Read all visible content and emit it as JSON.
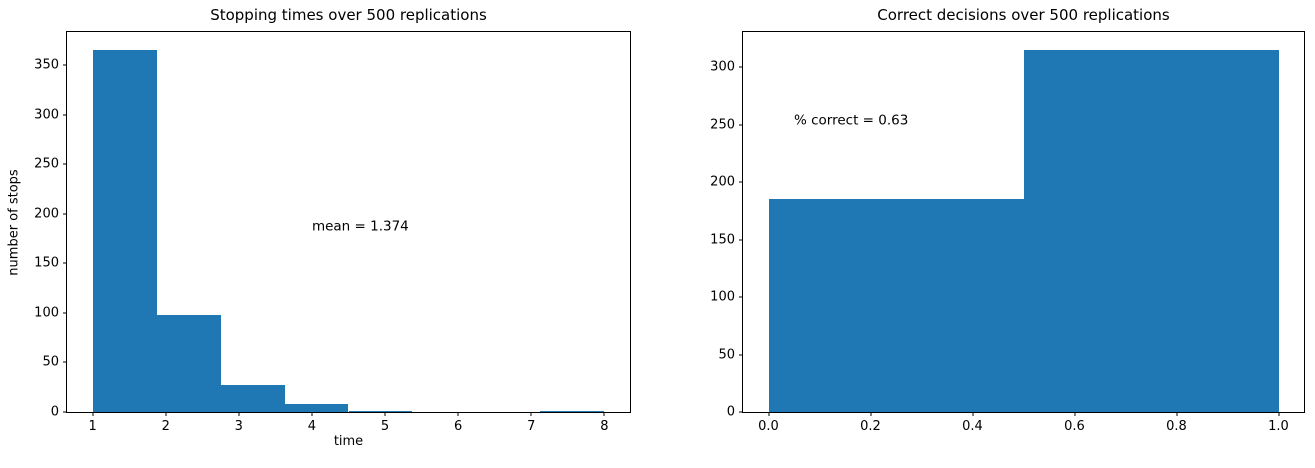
{
  "figure": {
    "background": "#ffffff",
    "bar_color": "#1f77b4",
    "spine_color": "#000000",
    "text_color": "#000000"
  },
  "chart_data": [
    {
      "type": "bar",
      "subtype": "histogram",
      "title": "Stopping times over 500 replications",
      "xlabel": "time",
      "ylabel": "number of stops",
      "bin_edges": [
        1,
        1.875,
        2.75,
        3.625,
        4.5,
        5.375,
        6.25,
        7.125,
        8
      ],
      "counts": [
        365,
        98,
        27,
        8,
        1,
        0,
        0,
        1
      ],
      "xlim": [
        0.65,
        8.35
      ],
      "ylim": [
        0,
        383.25
      ],
      "xticks": [
        1,
        2,
        3,
        4,
        5,
        6,
        7,
        8
      ],
      "xtick_labels": [
        "1",
        "2",
        "3",
        "4",
        "5",
        "6",
        "7",
        "8"
      ],
      "yticks": [
        0,
        50,
        100,
        150,
        200,
        250,
        300,
        350
      ],
      "ytick_labels": [
        "0",
        "50",
        "100",
        "150",
        "200",
        "250",
        "300",
        "350"
      ],
      "grid": false,
      "legend": null,
      "annotation": {
        "text": "mean = 1.374",
        "x": 4.0,
        "y": 187
      }
    },
    {
      "type": "bar",
      "subtype": "histogram",
      "title": "Correct decisions over 500 replications",
      "xlabel": "",
      "ylabel": "",
      "bin_edges": [
        0,
        0.5,
        1.0
      ],
      "counts": [
        185,
        315
      ],
      "xlim": [
        -0.05,
        1.05
      ],
      "ylim": [
        0,
        330.75
      ],
      "xticks": [
        0,
        0.2,
        0.4,
        0.6,
        0.8,
        1.0
      ],
      "xtick_labels": [
        "0.0",
        "0.2",
        "0.4",
        "0.6",
        "0.8",
        "1.0"
      ],
      "yticks": [
        0,
        50,
        100,
        150,
        200,
        250,
        300
      ],
      "ytick_labels": [
        "0",
        "50",
        "100",
        "150",
        "200",
        "250",
        "300"
      ],
      "grid": false,
      "legend": null,
      "annotation": {
        "text": "% correct = 0.63",
        "x": 0.05,
        "y": 253
      }
    }
  ]
}
